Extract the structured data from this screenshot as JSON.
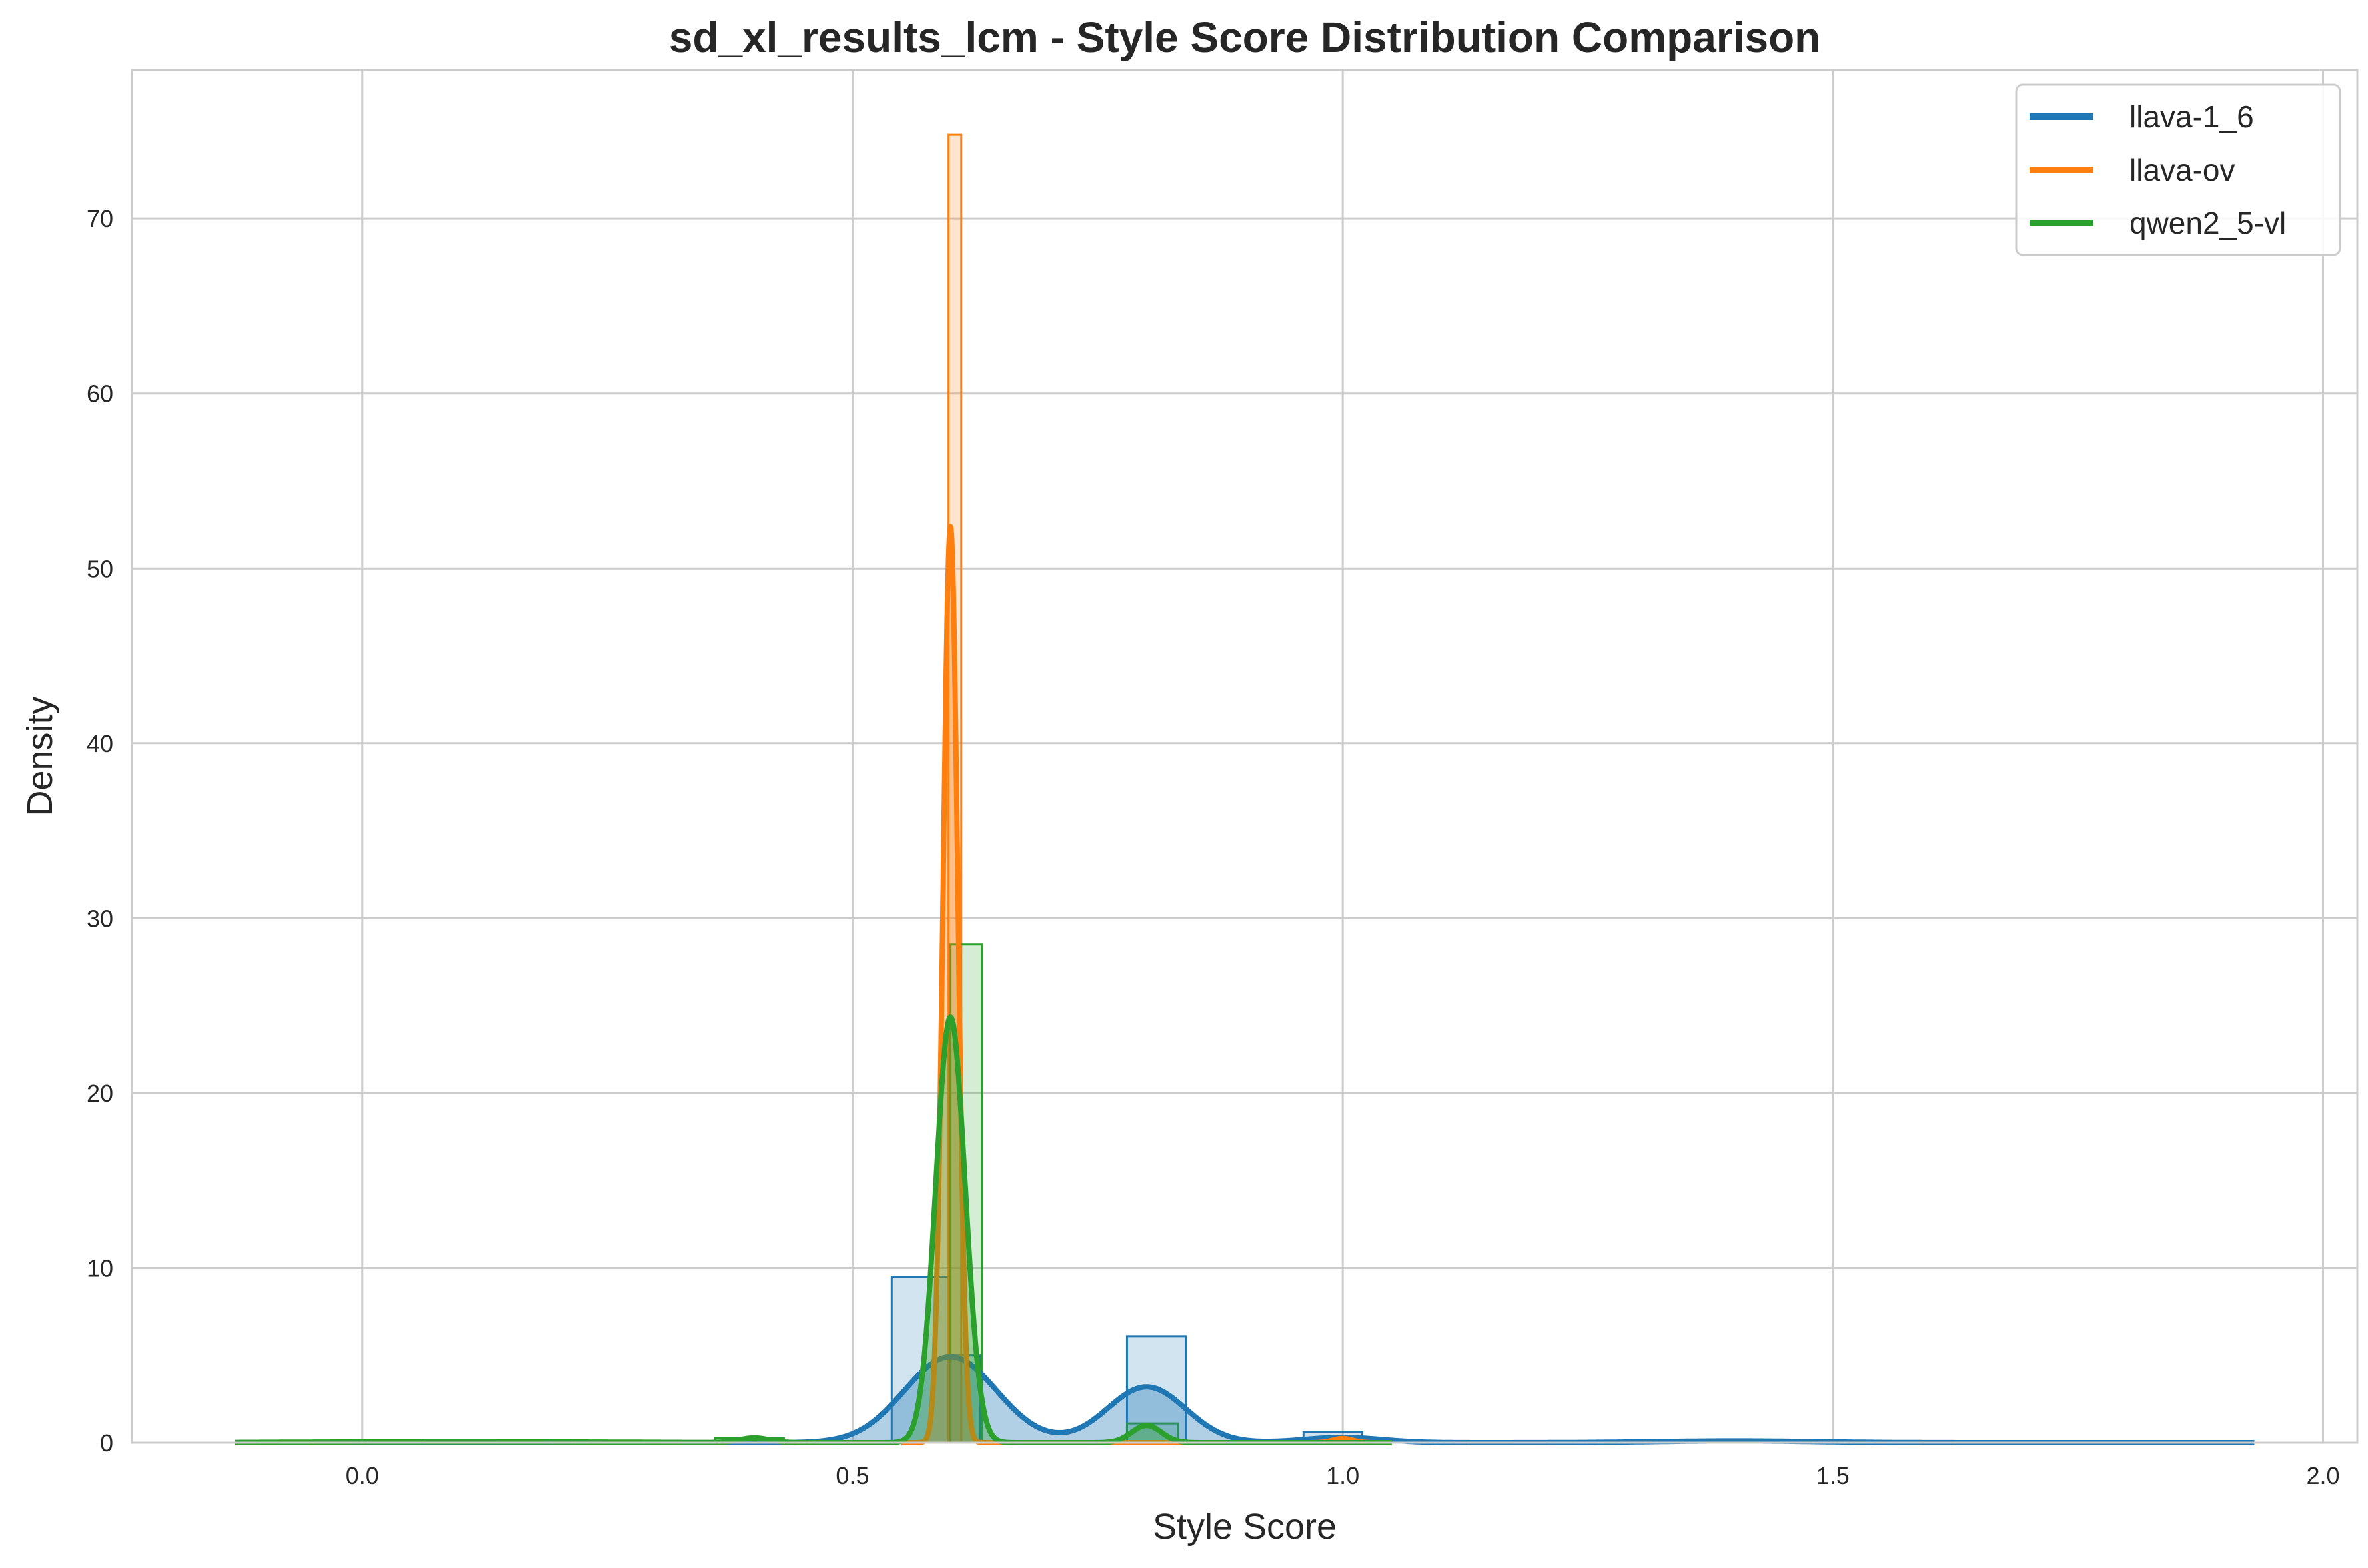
{
  "chart_data": {
    "type": "histogram+kde",
    "title": "sd_xl_results_lcm - Style Score Distribution Comparison",
    "xlabel": "Style Score",
    "ylabel": "Density",
    "xlim": [
      -0.235,
      2.035
    ],
    "ylim": [
      0,
      78.5
    ],
    "xticks": [
      0.0,
      0.5,
      1.0,
      1.5,
      2.0
    ],
    "xtick_labels": [
      "0.0",
      "0.5",
      "1.0",
      "1.5",
      "2.0"
    ],
    "yticks": [
      0,
      10,
      20,
      30,
      40,
      50,
      60,
      70
    ],
    "ytick_labels": [
      "0",
      "10",
      "20",
      "30",
      "40",
      "50",
      "60",
      "70"
    ],
    "grid": true,
    "legend_position": "top-right",
    "series": [
      {
        "name": "llava-1_6",
        "color": "#1f77b4",
        "histogram": [
          {
            "x0": 0.54,
            "x1": 0.6,
            "density": 9.5
          },
          {
            "x0": 0.6,
            "x1": 0.63,
            "density": 5.0
          },
          {
            "x0": 0.78,
            "x1": 0.84,
            "density": 6.1
          },
          {
            "x0": 0.96,
            "x1": 1.02,
            "density": 0.6
          },
          {
            "x0": 1.38,
            "x1": 1.44,
            "density": 0.1
          }
        ],
        "kde": {
          "range": [
            -0.13,
            1.93
          ],
          "components": [
            {
              "mean": 0.6,
              "sd": 0.047,
              "weight": 0.58
            },
            {
              "mean": 0.8,
              "sd": 0.04,
              "weight": 0.32
            },
            {
              "mean": 1.0,
              "sd": 0.04,
              "weight": 0.03
            },
            {
              "mean": 1.4,
              "sd": 0.08,
              "weight": 0.02
            }
          ]
        }
      },
      {
        "name": "llava-ov",
        "color": "#ff7f0e",
        "histogram": [
          {
            "x0": 0.598,
            "x1": 0.611,
            "density": 74.8
          },
          {
            "x0": 0.99,
            "x1": 1.01,
            "density": 0.3
          }
        ],
        "kde": {
          "range": [
            0.55,
            1.05
          ],
          "components": [
            {
              "mean": 0.6,
              "sd": 0.0075,
              "weight": 0.985
            },
            {
              "mean": 1.0,
              "sd": 0.01,
              "weight": 0.006
            }
          ]
        }
      },
      {
        "name": "qwen2_5-vl",
        "color": "#2ca02c",
        "histogram": [
          {
            "x0": 0.36,
            "x1": 0.43,
            "density": 0.25
          },
          {
            "x0": 0.6,
            "x1": 0.632,
            "density": 28.5
          },
          {
            "x0": 0.78,
            "x1": 0.832,
            "density": 1.1
          }
        ],
        "kde": {
          "range": [
            -0.13,
            1.05
          ],
          "components": [
            {
              "mean": 0.6,
              "sd": 0.015,
              "weight": 0.915
            },
            {
              "mean": 0.8,
              "sd": 0.015,
              "weight": 0.037
            },
            {
              "mean": 0.4,
              "sd": 0.015,
              "weight": 0.01
            },
            {
              "mean": 0.1,
              "sd": 0.15,
              "weight": 0.02
            }
          ]
        }
      }
    ]
  }
}
